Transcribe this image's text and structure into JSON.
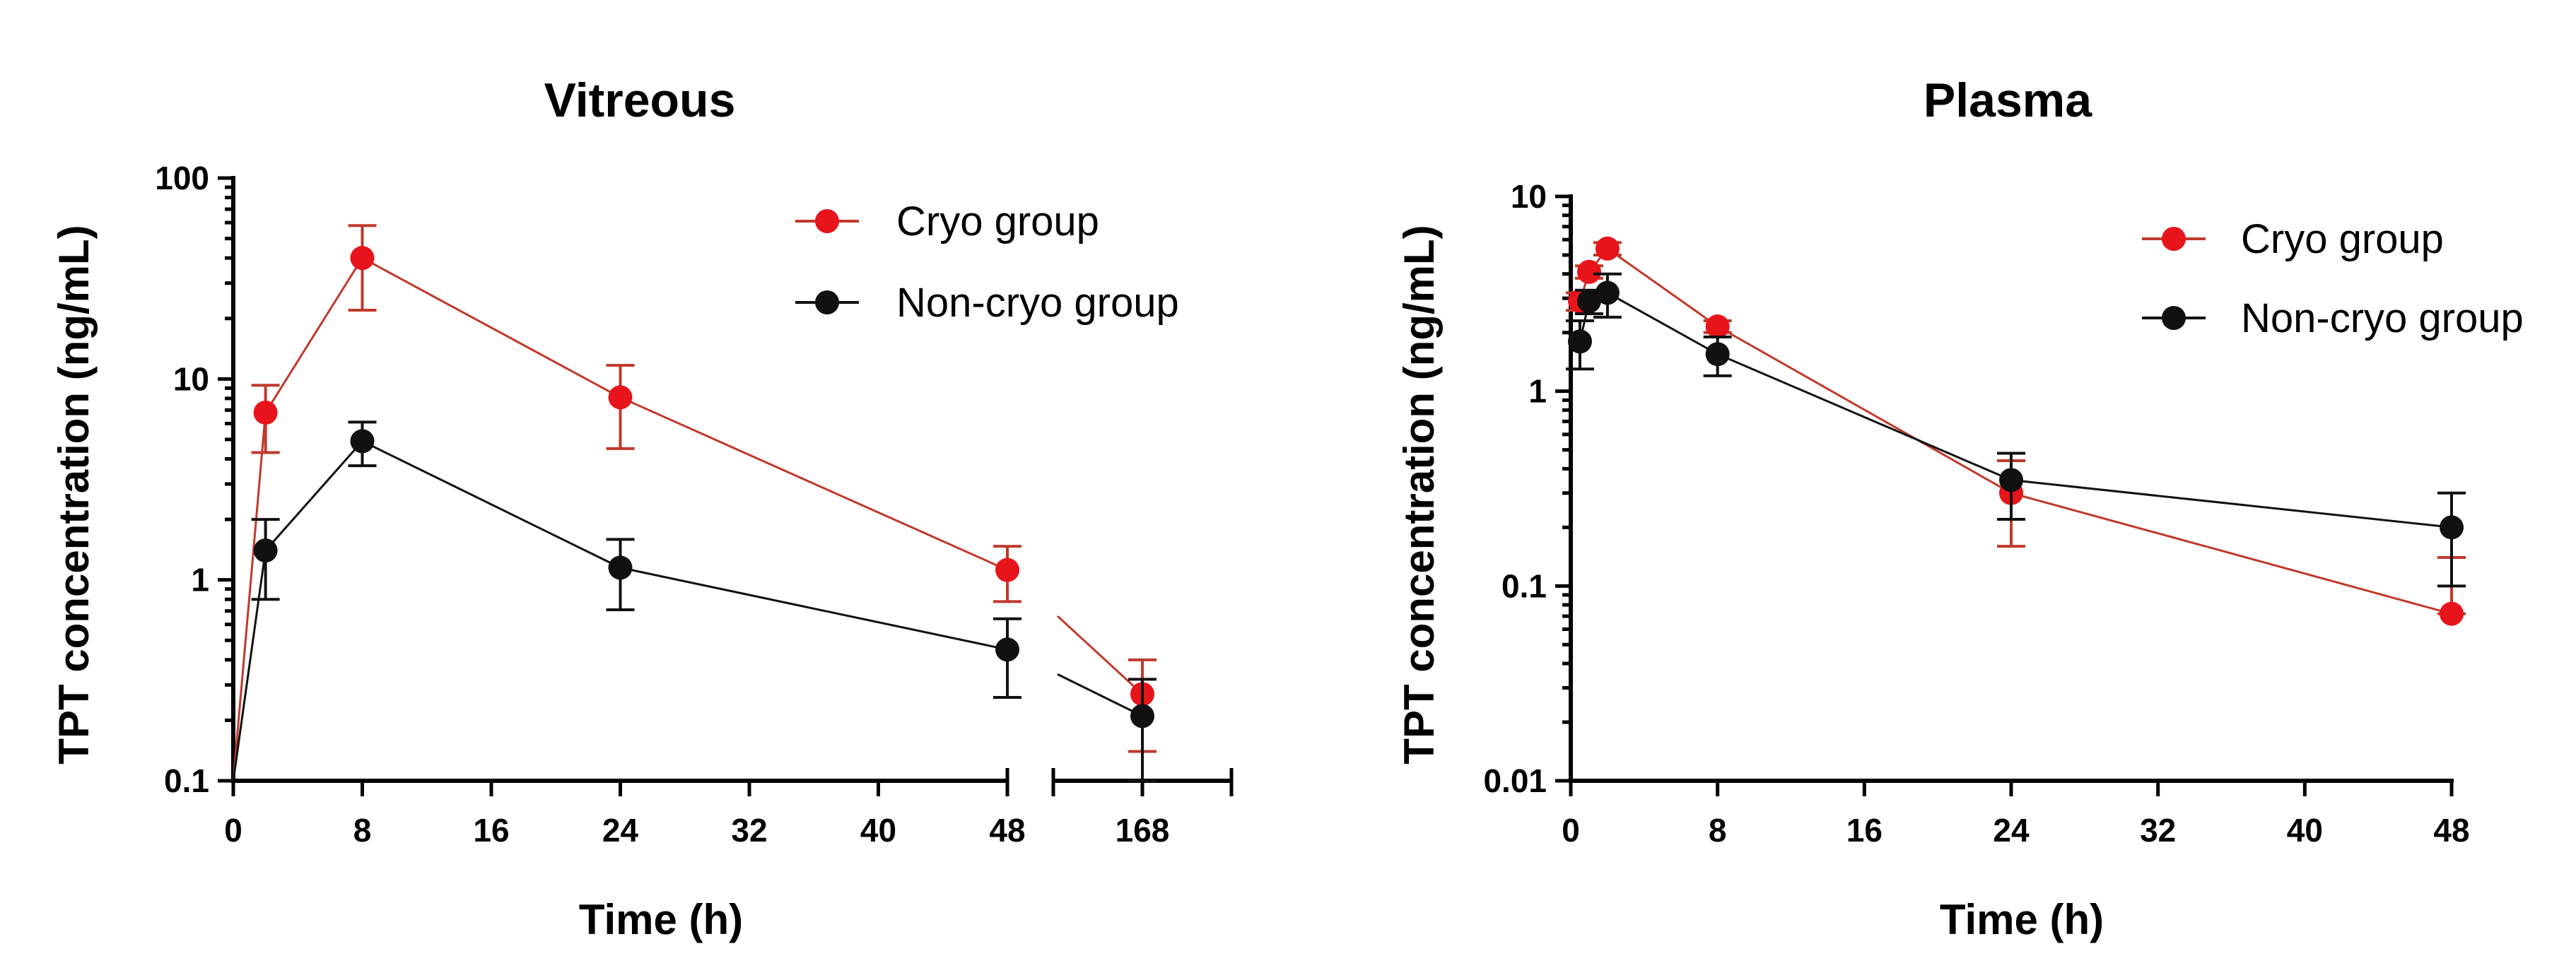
{
  "chart_data": [
    {
      "type": "line",
      "title": "Vitreous",
      "xlabel": "Time (h)",
      "ylabel": "TPT concentration (ng/mL)",
      "yscale": "log",
      "ylim": [
        0.1,
        100
      ],
      "yticks": [
        0.1,
        1,
        10,
        100
      ],
      "ytick_labels": [
        "0.1",
        "1",
        "10",
        "100"
      ],
      "x_segments": [
        {
          "xlim": [
            0,
            48
          ],
          "xticks": [
            0,
            8,
            16,
            24,
            32,
            40,
            48
          ],
          "xtick_labels": [
            "0",
            "8",
            "16",
            "24",
            "32",
            "40",
            "48"
          ]
        },
        {
          "xlim": [
            160,
            176
          ],
          "xticks": [
            168
          ],
          "xtick_labels": [
            "168"
          ]
        }
      ],
      "legend_position": "top-right",
      "series": [
        {
          "name": "Cryo group",
          "color": "#e8141b",
          "line_color": "#c0392b",
          "points": [
            {
              "x": 0,
              "y": 0.1,
              "err": 0,
              "marker": false
            },
            {
              "x": 2,
              "y": 6.8,
              "err_low": 4.3,
              "err_high": 9.3
            },
            {
              "x": 8,
              "y": 40,
              "err_low": 22,
              "err_high": 58
            },
            {
              "x": 24,
              "y": 8.1,
              "err_low": 4.5,
              "err_high": 11.7
            },
            {
              "x": 48,
              "y": 1.12,
              "err_low": 0.78,
              "err_high": 1.47
            },
            {
              "x": 168,
              "y": 0.27,
              "err_low": 0.14,
              "err_high": 0.4
            }
          ]
        },
        {
          "name": "Non-cryo group",
          "color": "#111111",
          "line_color": "#111111",
          "points": [
            {
              "x": 0,
              "y": 0.1,
              "err": 0,
              "marker": false
            },
            {
              "x": 2,
              "y": 1.4,
              "err_low": 0.8,
              "err_high": 2.0
            },
            {
              "x": 8,
              "y": 4.9,
              "err_low": 3.7,
              "err_high": 6.1
            },
            {
              "x": 24,
              "y": 1.15,
              "err_low": 0.71,
              "err_high": 1.59
            },
            {
              "x": 48,
              "y": 0.45,
              "err_low": 0.26,
              "err_high": 0.64
            },
            {
              "x": 168,
              "y": 0.21,
              "err_low": 0.1,
              "err_high": 0.32
            }
          ]
        }
      ]
    },
    {
      "type": "line",
      "title": "Plasma",
      "xlabel": "Time (h)",
      "ylabel": "TPT concentration (ng/mL)",
      "yscale": "log",
      "ylim": [
        0.01,
        10
      ],
      "yticks": [
        0.01,
        0.1,
        1,
        10
      ],
      "ytick_labels": [
        "0.01",
        "0.1",
        "1",
        "10"
      ],
      "xlim": [
        0,
        48
      ],
      "xticks": [
        0,
        8,
        16,
        24,
        32,
        40,
        48
      ],
      "xtick_labels": [
        "0",
        "8",
        "16",
        "24",
        "32",
        "40",
        "48"
      ],
      "legend_position": "top-right",
      "series": [
        {
          "name": "Cryo group",
          "color": "#e8141b",
          "line_color": "#c0392b",
          "points": [
            {
              "x": 0.5,
              "y": 2.9,
              "err_low": 2.6,
              "err_high": 3.2
            },
            {
              "x": 1,
              "y": 4.1,
              "err_low": 3.8,
              "err_high": 4.4
            },
            {
              "x": 2,
              "y": 5.4,
              "err_low": 5.0,
              "err_high": 5.8
            },
            {
              "x": 8,
              "y": 2.15,
              "err_low": 2.0,
              "err_high": 2.3
            },
            {
              "x": 24,
              "y": 0.3,
              "err_low": 0.16,
              "err_high": 0.44
            },
            {
              "x": 48,
              "y": 0.072,
              "err_low": 0.072,
              "err_high": 0.14
            }
          ]
        },
        {
          "name": "Non-cryo group",
          "color": "#111111",
          "line_color": "#111111",
          "points": [
            {
              "x": 0.5,
              "y": 1.8,
              "err_low": 1.3,
              "err_high": 2.3
            },
            {
              "x": 1,
              "y": 2.9,
              "err_low": 2.5,
              "err_high": 3.3
            },
            {
              "x": 2,
              "y": 3.2,
              "err_low": 2.4,
              "err_high": 4.0
            },
            {
              "x": 8,
              "y": 1.55,
              "err_low": 1.2,
              "err_high": 1.9
            },
            {
              "x": 24,
              "y": 0.35,
              "err_low": 0.22,
              "err_high": 0.48
            },
            {
              "x": 48,
              "y": 0.2,
              "err_low": 0.1,
              "err_high": 0.3
            }
          ]
        }
      ]
    }
  ]
}
